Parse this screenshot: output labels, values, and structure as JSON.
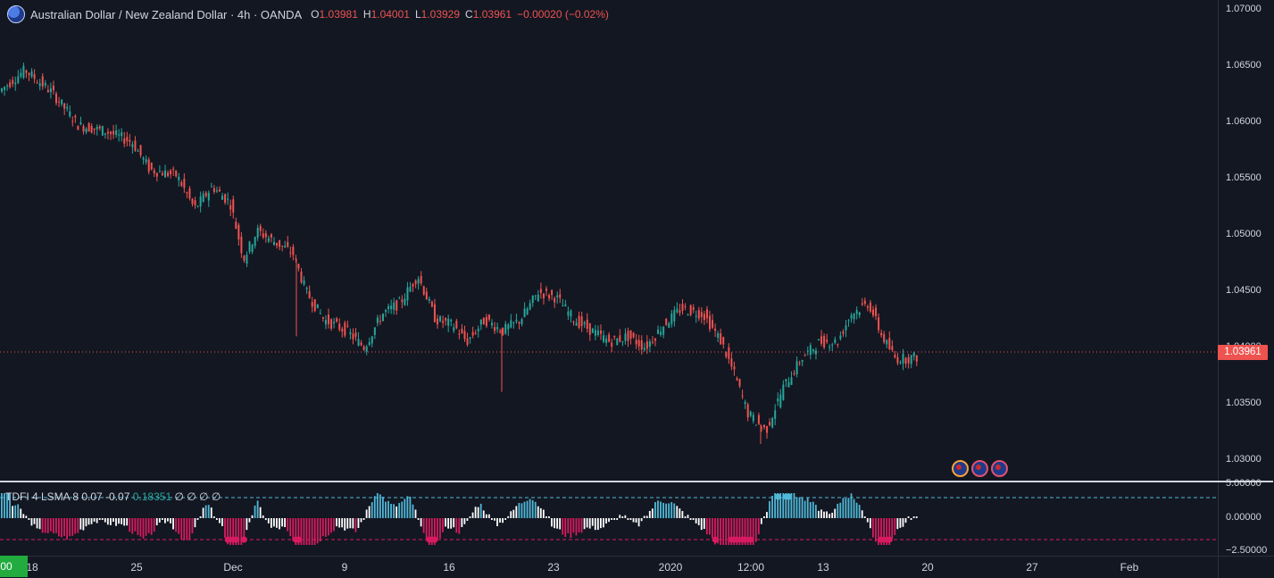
{
  "legend": {
    "icon": "aud-nzd-flags-icon",
    "title": "Australian Dollar / New Zealand Dollar · 4h · OANDA",
    "o_label": "O",
    "o": "1.03981",
    "h_label": "H",
    "h": "1.04001",
    "l_label": "L",
    "l": "1.03929",
    "c_label": "C",
    "c": "1.03961",
    "change": "−0.00020 (−0.02%)"
  },
  "price_axis": {
    "labels": [
      "1.07000",
      "1.06500",
      "1.06000",
      "1.05500",
      "1.05000",
      "1.04500",
      "1.04000",
      "1.03500",
      "1.03000"
    ],
    "last_price": "1.03961"
  },
  "indicator": {
    "name": "TDFI 4 LSMA 8 0.07 -0.07",
    "value": "0.18351",
    "extra": "∅  ∅  ∅  ∅",
    "axis_labels": [
      "5.00000",
      "0.00000",
      "−2.50000"
    ]
  },
  "time_axis": {
    "badge": ":00",
    "labels": [
      "18",
      "25",
      "Dec",
      "9",
      "16",
      "23",
      "2020",
      "12:00",
      "13",
      "20",
      "27",
      "Feb"
    ]
  },
  "colors": {
    "up": "#26a69a",
    "down": "#ef5350",
    "ind_up": "#4fb8d8",
    "ind_down": "#d81b60",
    "ind_neutral": "#ffffff",
    "background": "#131722"
  },
  "chart_data": {
    "type": "candlestick",
    "symbol": "AUDNZD",
    "timeframe": "4h",
    "ylim": [
      1.0285,
      1.0718
    ],
    "last": 1.03961,
    "path": [
      [
        0,
        1.0635
      ],
      [
        30,
        1.0655
      ],
      [
        60,
        1.0635
      ],
      [
        90,
        1.0605
      ],
      [
        120,
        1.06
      ],
      [
        150,
        1.059
      ],
      [
        170,
        1.0565
      ],
      [
        200,
        1.056
      ],
      [
        220,
        1.053
      ],
      [
        240,
        1.055
      ],
      [
        260,
        1.0535
      ],
      [
        275,
        1.0485
      ],
      [
        290,
        1.051
      ],
      [
        310,
        1.05
      ],
      [
        330,
        1.049
      ],
      [
        345,
        1.0455
      ],
      [
        365,
        1.043
      ],
      [
        390,
        1.042
      ],
      [
        410,
        1.0405
      ],
      [
        430,
        1.0435
      ],
      [
        450,
        1.0445
      ],
      [
        470,
        1.047
      ],
      [
        490,
        1.043
      ],
      [
        510,
        1.0425
      ],
      [
        525,
        1.041
      ],
      [
        545,
        1.043
      ],
      [
        565,
        1.042
      ],
      [
        585,
        1.043
      ],
      [
        605,
        1.0455
      ],
      [
        625,
        1.045
      ],
      [
        645,
        1.043
      ],
      [
        665,
        1.042
      ],
      [
        685,
        1.041
      ],
      [
        705,
        1.0415
      ],
      [
        725,
        1.0405
      ],
      [
        745,
        1.0425
      ],
      [
        765,
        1.044
      ],
      [
        790,
        1.0435
      ],
      [
        810,
        1.041
      ],
      [
        825,
        1.038
      ],
      [
        840,
        1.0345
      ],
      [
        860,
        1.033
      ],
      [
        880,
        1.037
      ],
      [
        900,
        1.0395
      ],
      [
        920,
        1.041
      ],
      [
        940,
        1.041
      ],
      [
        955,
        1.0435
      ],
      [
        975,
        1.0445
      ],
      [
        990,
        1.0415
      ],
      [
        1005,
        1.0395
      ],
      [
        1015,
        1.0395
      ],
      [
        1028,
        1.03961
      ]
    ],
    "wicks": [
      [
        562,
        1.0365
      ],
      [
        332,
        1.0415
      ],
      [
        852,
        1.0318
      ]
    ]
  }
}
